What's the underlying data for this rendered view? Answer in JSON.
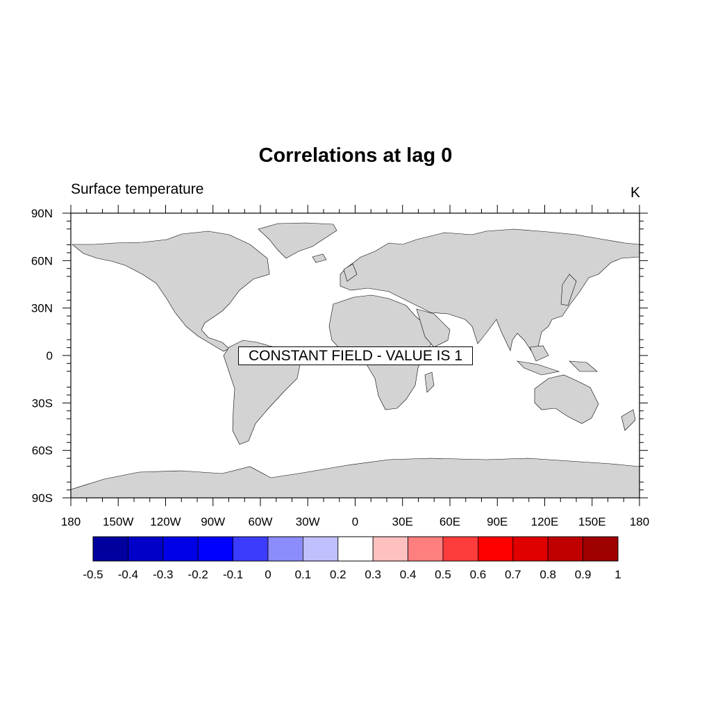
{
  "title": "Correlations at lag 0",
  "left_string": "Surface temperature",
  "right_string": "K",
  "annotation": "CONSTANT FIELD - VALUE IS 1",
  "map": {
    "projection": "cylindrical-equidistant",
    "land_color": "#d3d3d3",
    "ocean_color": "#ffffff",
    "lon_range": [
      -180,
      180
    ],
    "lat_range": [
      -90,
      90
    ],
    "lon_ticks": [
      {
        "value": -180,
        "label": "180"
      },
      {
        "value": -150,
        "label": "150W"
      },
      {
        "value": -120,
        "label": "120W"
      },
      {
        "value": -90,
        "label": "90W"
      },
      {
        "value": -60,
        "label": "60W"
      },
      {
        "value": -30,
        "label": "30W"
      },
      {
        "value": 0,
        "label": "0"
      },
      {
        "value": 30,
        "label": "30E"
      },
      {
        "value": 60,
        "label": "60E"
      },
      {
        "value": 90,
        "label": "90E"
      },
      {
        "value": 120,
        "label": "120E"
      },
      {
        "value": 150,
        "label": "150E"
      },
      {
        "value": 180,
        "label": "180"
      }
    ],
    "lat_ticks": [
      {
        "value": 90,
        "label": "90N"
      },
      {
        "value": 60,
        "label": "60N"
      },
      {
        "value": 30,
        "label": "30N"
      },
      {
        "value": 0,
        "label": "0"
      },
      {
        "value": -30,
        "label": "30S"
      },
      {
        "value": -60,
        "label": "60S"
      },
      {
        "value": -90,
        "label": "90S"
      }
    ]
  },
  "colorbar": {
    "labels": [
      "-0.5",
      "-0.4",
      "-0.3",
      "-0.2",
      "-0.1",
      "0",
      "0.1",
      "0.2",
      "0.3",
      "0.4",
      "0.5",
      "0.6",
      "0.7",
      "0.8",
      "0.9",
      "1"
    ],
    "colors": [
      "#00009f",
      "#0000c8",
      "#0000e6",
      "#0000ff",
      "#3c3cff",
      "#8c8cff",
      "#c0c0ff",
      "#ffffff",
      "#ffc0c0",
      "#ff7e7e",
      "#ff3c3c",
      "#ff0000",
      "#e10000",
      "#c00000",
      "#9f0000"
    ]
  }
}
